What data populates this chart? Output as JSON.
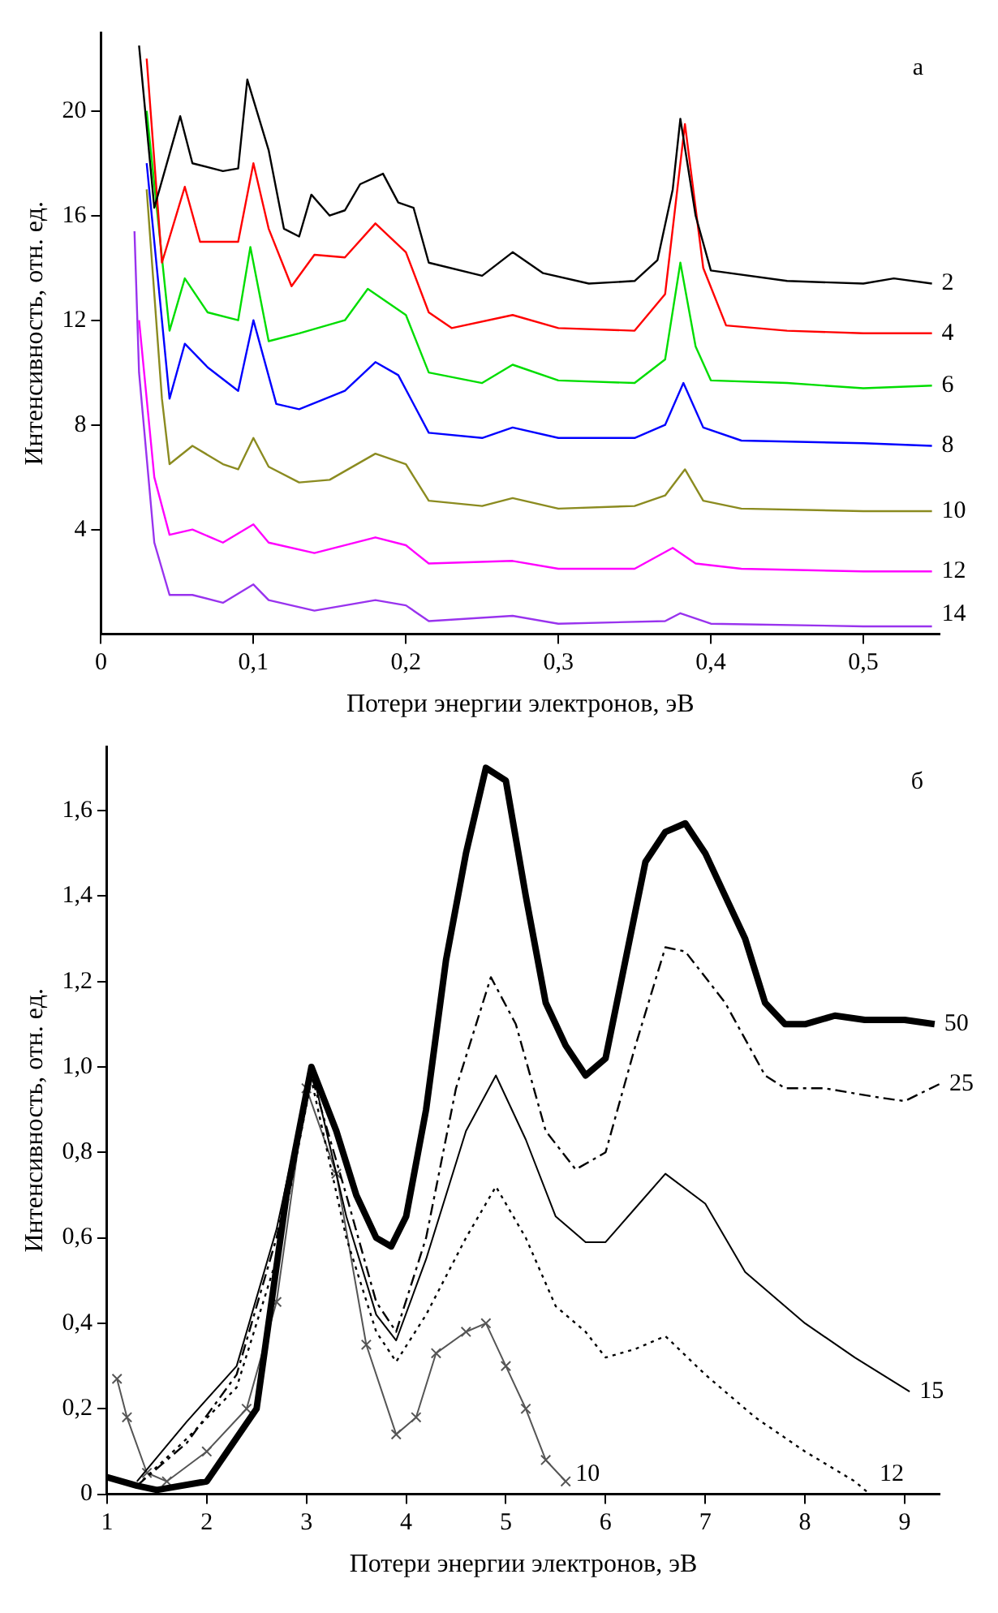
{
  "chart_data": [
    {
      "type": "line",
      "xlabel": "Потери энергии электронов, эВ",
      "ylabel": "Интенсивность, отн. ед.",
      "annotations": [
        "а"
      ],
      "xlim": [
        0,
        0.55
      ],
      "ylim": [
        0,
        23
      ],
      "xticks": [
        0,
        {
          "value": 0.1,
          "label": "0,1"
        },
        {
          "value": 0.2,
          "label": "0,2"
        },
        {
          "value": 0.3,
          "label": "0,3"
        },
        {
          "value": 0.4,
          "label": "0,4"
        },
        {
          "value": 0.5,
          "label": "0,5"
        }
      ],
      "yticks": [
        4,
        8,
        12,
        16,
        20
      ],
      "grid": false,
      "legend": false,
      "marker": "none",
      "line_style": "solid",
      "series": [
        {
          "name": "2",
          "color": "#000000",
          "x": [
            0.025,
            0.035,
            0.052,
            0.06,
            0.08,
            0.09,
            0.096,
            0.11,
            0.12,
            0.13,
            0.138,
            0.15,
            0.16,
            0.17,
            0.185,
            0.195,
            0.205,
            0.215,
            0.25,
            0.27,
            0.29,
            0.32,
            0.35,
            0.365,
            0.375,
            0.38,
            0.39,
            0.4,
            0.45,
            0.5,
            0.52,
            0.545
          ],
          "values": [
            22.5,
            16.3,
            19.8,
            18,
            17.7,
            17.8,
            21.2,
            18.5,
            15.5,
            15.2,
            16.8,
            16,
            16.2,
            17.2,
            17.6,
            16.5,
            16.3,
            14.2,
            13.7,
            14.6,
            13.8,
            13.4,
            13.5,
            14.3,
            17,
            19.7,
            16,
            13.9,
            13.5,
            13.4,
            13.6,
            13.4
          ]
        },
        {
          "name": "4",
          "color": "#ff0000",
          "x": [
            0.03,
            0.04,
            0.055,
            0.065,
            0.09,
            0.1,
            0.11,
            0.125,
            0.14,
            0.16,
            0.18,
            0.2,
            0.215,
            0.23,
            0.27,
            0.3,
            0.35,
            0.37,
            0.383,
            0.395,
            0.41,
            0.45,
            0.5,
            0.545
          ],
          "values": [
            22,
            14.2,
            17.1,
            15,
            15,
            18,
            15.5,
            13.3,
            14.5,
            14.4,
            15.7,
            14.6,
            12.3,
            11.7,
            12.2,
            11.7,
            11.6,
            13,
            19.5,
            14,
            11.8,
            11.6,
            11.5,
            11.5
          ]
        },
        {
          "name": "6",
          "color": "#00dd00",
          "x": [
            0.03,
            0.045,
            0.055,
            0.07,
            0.09,
            0.098,
            0.11,
            0.13,
            0.16,
            0.175,
            0.2,
            0.215,
            0.25,
            0.27,
            0.3,
            0.35,
            0.37,
            0.38,
            0.39,
            0.4,
            0.45,
            0.5,
            0.545
          ],
          "values": [
            20,
            11.6,
            13.6,
            12.3,
            12,
            14.8,
            11.2,
            11.5,
            12,
            13.2,
            12.2,
            10,
            9.6,
            10.3,
            9.7,
            9.6,
            10.5,
            14.2,
            11,
            9.7,
            9.6,
            9.4,
            9.5
          ]
        },
        {
          "name": "8",
          "color": "#0000ff",
          "x": [
            0.03,
            0.045,
            0.055,
            0.07,
            0.09,
            0.1,
            0.115,
            0.13,
            0.16,
            0.18,
            0.195,
            0.215,
            0.25,
            0.27,
            0.3,
            0.35,
            0.37,
            0.382,
            0.395,
            0.42,
            0.5,
            0.545
          ],
          "values": [
            18,
            9,
            11.1,
            10.2,
            9.3,
            12,
            8.8,
            8.6,
            9.3,
            10.4,
            9.9,
            7.7,
            7.5,
            7.9,
            7.5,
            7.5,
            8,
            9.6,
            7.9,
            7.4,
            7.3,
            7.2
          ]
        },
        {
          "name": "10",
          "color": "#8b8b20",
          "x": [
            0.03,
            0.04,
            0.045,
            0.06,
            0.08,
            0.09,
            0.1,
            0.11,
            0.13,
            0.15,
            0.18,
            0.2,
            0.215,
            0.25,
            0.27,
            0.3,
            0.35,
            0.37,
            0.383,
            0.395,
            0.42,
            0.5,
            0.545
          ],
          "values": [
            17,
            9,
            6.5,
            7.2,
            6.5,
            6.3,
            7.5,
            6.4,
            5.8,
            5.9,
            6.9,
            6.5,
            5.1,
            4.9,
            5.2,
            4.8,
            4.9,
            5.3,
            6.3,
            5.1,
            4.8,
            4.7,
            4.7
          ]
        },
        {
          "name": "12",
          "color": "#ff00ff",
          "x": [
            0.025,
            0.035,
            0.045,
            0.06,
            0.08,
            0.1,
            0.11,
            0.14,
            0.18,
            0.2,
            0.215,
            0.27,
            0.3,
            0.35,
            0.375,
            0.39,
            0.42,
            0.5,
            0.545
          ],
          "values": [
            12,
            6,
            3.8,
            4,
            3.5,
            4.2,
            3.5,
            3.1,
            3.7,
            3.4,
            2.7,
            2.8,
            2.5,
            2.5,
            3.3,
            2.7,
            2.5,
            2.4,
            2.4
          ]
        },
        {
          "name": "14",
          "color": "#9933ee",
          "x": [
            0.022,
            0.025,
            0.035,
            0.045,
            0.06,
            0.08,
            0.1,
            0.11,
            0.14,
            0.18,
            0.2,
            0.215,
            0.27,
            0.3,
            0.37,
            0.38,
            0.4,
            0.5,
            0.545
          ],
          "values": [
            15.4,
            10,
            3.5,
            1.5,
            1.5,
            1.2,
            1.9,
            1.3,
            0.9,
            1.3,
            1.1,
            0.5,
            0.7,
            0.4,
            0.5,
            0.8,
            0.4,
            0.3,
            0.3
          ]
        }
      ]
    },
    {
      "type": "line",
      "xlabel": "Потери энергии электронов, эВ",
      "ylabel": "Интенсивность, отн. ед.",
      "annotations": [
        "б"
      ],
      "xlim": [
        1,
        9.35
      ],
      "ylim": [
        0,
        1.75
      ],
      "xticks": [
        1,
        2,
        3,
        4,
        5,
        6,
        7,
        8,
        9
      ],
      "yticks": [
        0,
        {
          "value": 0.2,
          "label": "0,2"
        },
        {
          "value": 0.4,
          "label": "0,4"
        },
        {
          "value": 0.6,
          "label": "0,6"
        },
        {
          "value": 0.8,
          "label": "0,8"
        },
        {
          "value": 1,
          "label": "1,0"
        },
        {
          "value": 1.2,
          "label": "1,2"
        },
        {
          "value": 1.4,
          "label": "1,4"
        },
        {
          "value": 1.6,
          "label": "1,6"
        }
      ],
      "grid": false,
      "legend": false,
      "marker": "none",
      "line_style": "solid",
      "series": [
        {
          "name": "50",
          "color": "#000000",
          "x": [
            1,
            1.3,
            1.5,
            2,
            2.5,
            2.8,
            3.05,
            3.3,
            3.5,
            3.7,
            3.85,
            4,
            4.2,
            4.4,
            4.6,
            4.8,
            5,
            5.2,
            5.4,
            5.6,
            5.8,
            6,
            6.2,
            6.4,
            6.6,
            6.8,
            7,
            7.2,
            7.4,
            7.6,
            7.8,
            8,
            8.3,
            8.6,
            9,
            9.3
          ],
          "values": [
            0.04,
            0.02,
            0.01,
            0.03,
            0.2,
            0.7,
            1,
            0.85,
            0.7,
            0.6,
            0.58,
            0.65,
            0.9,
            1.25,
            1.5,
            1.7,
            1.67,
            1.4,
            1.15,
            1.05,
            0.98,
            1.02,
            1.25,
            1.48,
            1.55,
            1.57,
            1.5,
            1.4,
            1.3,
            1.15,
            1.1,
            1.1,
            1.12,
            1.11,
            1.11,
            1.1
          ]
        },
        {
          "name": "25",
          "color": "#000000",
          "line_style": "dashed",
          "x": [
            1.3,
            1.8,
            2.3,
            2.7,
            3.05,
            3.4,
            3.7,
            3.9,
            4.2,
            4.5,
            4.85,
            5.1,
            5.4,
            5.7,
            6,
            6.3,
            6.6,
            6.8,
            7.2,
            7.6,
            7.8,
            8.2,
            8.7,
            9,
            9.35
          ],
          "values": [
            0.02,
            0.12,
            0.28,
            0.6,
            0.98,
            0.7,
            0.45,
            0.38,
            0.6,
            0.95,
            1.21,
            1.1,
            0.85,
            0.76,
            0.8,
            1.05,
            1.28,
            1.27,
            1.15,
            0.98,
            0.95,
            0.95,
            0.93,
            0.92,
            0.96
          ]
        },
        {
          "name": "15",
          "color": "#000000",
          "x": [
            1.3,
            1.8,
            2.3,
            2.7,
            3.05,
            3.4,
            3.7,
            3.9,
            4.2,
            4.6,
            4.9,
            5.2,
            5.5,
            5.8,
            6,
            6.3,
            6.6,
            7,
            7.4,
            8,
            8.5,
            9.05
          ],
          "values": [
            0.03,
            0.17,
            0.3,
            0.62,
            1,
            0.65,
            0.42,
            0.36,
            0.55,
            0.85,
            0.98,
            0.83,
            0.65,
            0.59,
            0.59,
            0.67,
            0.75,
            0.68,
            0.52,
            0.4,
            0.32,
            0.24
          ]
        },
        {
          "name": "12",
          "color": "#000000",
          "line_style": "dotted",
          "x": [
            1.3,
            1.8,
            2.3,
            2.7,
            3.05,
            3.4,
            3.7,
            3.9,
            4.2,
            4.6,
            4.9,
            5.2,
            5.5,
            5.8,
            6,
            6.3,
            6.6,
            7,
            7.5,
            8,
            8.5,
            8.65
          ],
          "values": [
            0.02,
            0.13,
            0.25,
            0.55,
            0.97,
            0.6,
            0.38,
            0.31,
            0.42,
            0.6,
            0.72,
            0.6,
            0.44,
            0.38,
            0.32,
            0.34,
            0.37,
            0.28,
            0.18,
            0.1,
            0.03,
            0
          ]
        },
        {
          "name": "10",
          "color": "#555555",
          "marker": "cross",
          "x": [
            1.1,
            1.2,
            1.4,
            1.6,
            2,
            2.4,
            2.7,
            3,
            3.3,
            3.6,
            3.9,
            4.1,
            4.3,
            4.6,
            4.8,
            5,
            5.2,
            5.4,
            5.6
          ],
          "values": [
            0.27,
            0.18,
            0.05,
            0.03,
            0.1,
            0.2,
            0.45,
            0.95,
            0.75,
            0.35,
            0.14,
            0.18,
            0.33,
            0.38,
            0.4,
            0.3,
            0.2,
            0.08,
            0.03
          ]
        }
      ]
    }
  ]
}
